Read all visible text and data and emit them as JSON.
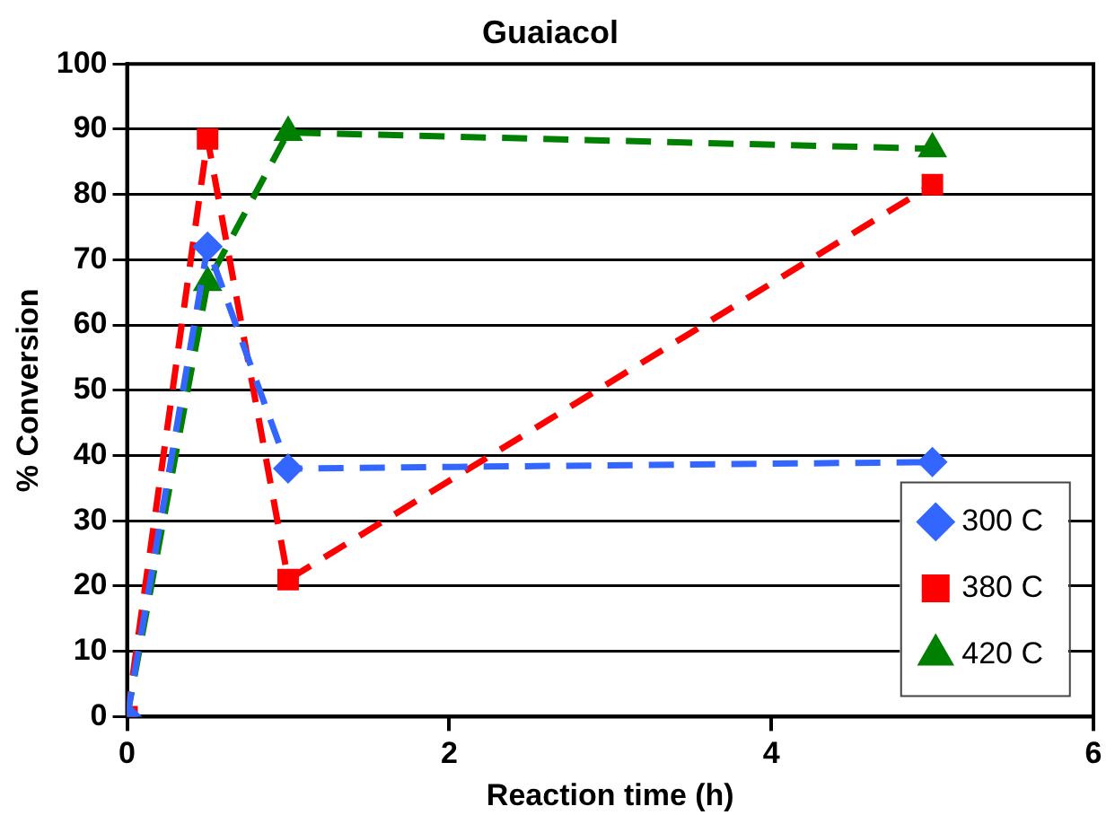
{
  "chart_data": {
    "type": "line",
    "title": "Guaiacol",
    "xlabel": "Reaction time (h)",
    "ylabel": "% Conversion",
    "x": [
      0,
      0.5,
      1,
      5
    ],
    "series": [
      {
        "name": "300 C",
        "color": "#3366ff",
        "marker": "diamond",
        "values": [
          0,
          72,
          38,
          39
        ]
      },
      {
        "name": "380 C",
        "color": "#ff0000",
        "marker": "square",
        "values": [
          0,
          88.5,
          21,
          81.5
        ]
      },
      {
        "name": "420 C",
        "color": "#008000",
        "marker": "triangle",
        "values": [
          0,
          66.5,
          89.5,
          87
        ]
      }
    ],
    "xlim": [
      0,
      6
    ],
    "xticks": [
      0,
      2,
      4,
      6
    ],
    "ylim": [
      0,
      100
    ],
    "yticks": [
      0,
      10,
      20,
      30,
      40,
      50,
      60,
      70,
      80,
      90,
      100
    ],
    "grid": "y",
    "legend": "bottom right",
    "line_style": "dashed"
  }
}
